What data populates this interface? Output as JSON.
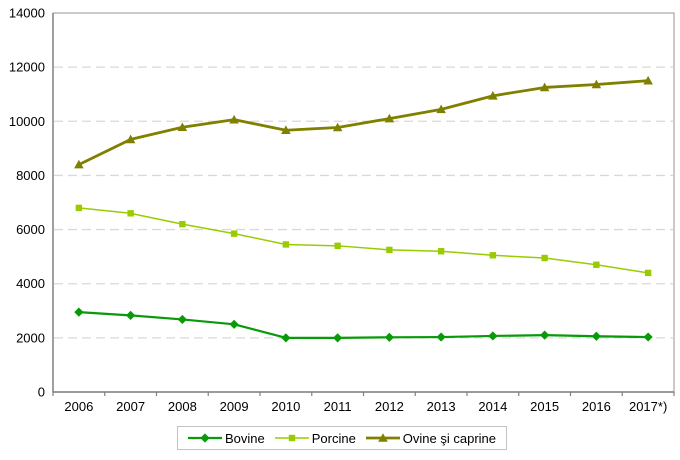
{
  "chart_data": {
    "type": "line",
    "title": "",
    "xlabel": "",
    "ylabel": "",
    "categories": [
      "2006",
      "2007",
      "2008",
      "2009",
      "2010",
      "2011",
      "2012",
      "2013",
      "2014",
      "2015",
      "2016",
      "2017*)"
    ],
    "series": [
      {
        "name": "Bovine",
        "marker": "diamond",
        "color": "#089a08",
        "line_width": 2.2,
        "values": [
          2950,
          2830,
          2680,
          2500,
          2000,
          2000,
          2020,
          2030,
          2070,
          2100,
          2060,
          2030
        ]
      },
      {
        "name": "Porcine",
        "marker": "square",
        "color": "#99cc00",
        "line_width": 1.5,
        "values": [
          6800,
          6600,
          6200,
          5850,
          5450,
          5400,
          5250,
          5200,
          5050,
          4950,
          4700,
          4400
        ]
      },
      {
        "name": "Ovine şi caprine",
        "marker": "triangle",
        "color": "#808000",
        "line_width": 2.8,
        "values": [
          8400,
          9330,
          9780,
          10060,
          9670,
          9770,
          10100,
          10440,
          10940,
          11250,
          11360,
          11500
        ]
      }
    ],
    "ylim": [
      0,
      14000
    ],
    "yticks": [
      0,
      2000,
      4000,
      6000,
      8000,
      10000,
      12000,
      14000
    ],
    "grid": "horizontal-dashed",
    "legend_position": "bottom-center"
  },
  "colors": {
    "background": "#ffffff",
    "plot_border": "#a6a6a6",
    "axis_line": "#808080",
    "gridline": "#d9d9d9",
    "tick": "#808080",
    "text": "#000000",
    "legend_border": "#c3c3c3"
  }
}
